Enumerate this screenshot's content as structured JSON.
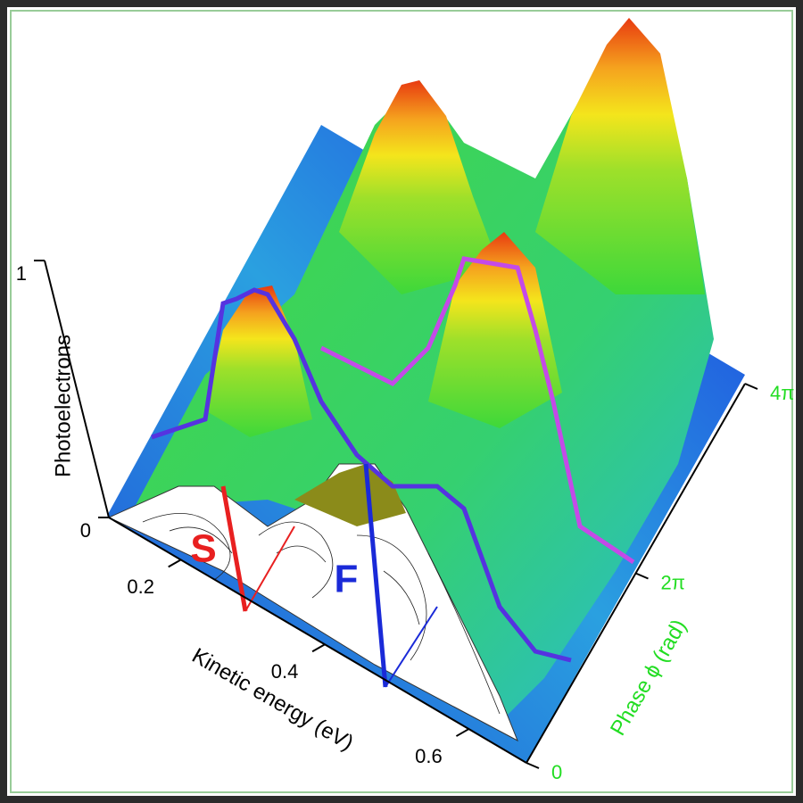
{
  "chart_data": {
    "type": "surface",
    "xlabel": "Kinetic energy (eV)",
    "ylabel": "Phase ϕ (rad)",
    "zlabel": "Photoelectrons",
    "xlim": [
      0.1,
      0.68
    ],
    "xticks": [
      0.2,
      0.4,
      0.6
    ],
    "ylim": [
      0,
      12.566
    ],
    "yticks": [
      0,
      {
        "value": 6.283,
        "label": "2π"
      },
      {
        "value": 12.566,
        "label": "4π"
      }
    ],
    "ylabel_color": "#22dd22",
    "zlim": [
      0,
      1
    ],
    "zticks": [
      0,
      1
    ],
    "annotations": [
      "S",
      "F"
    ]
  }
}
